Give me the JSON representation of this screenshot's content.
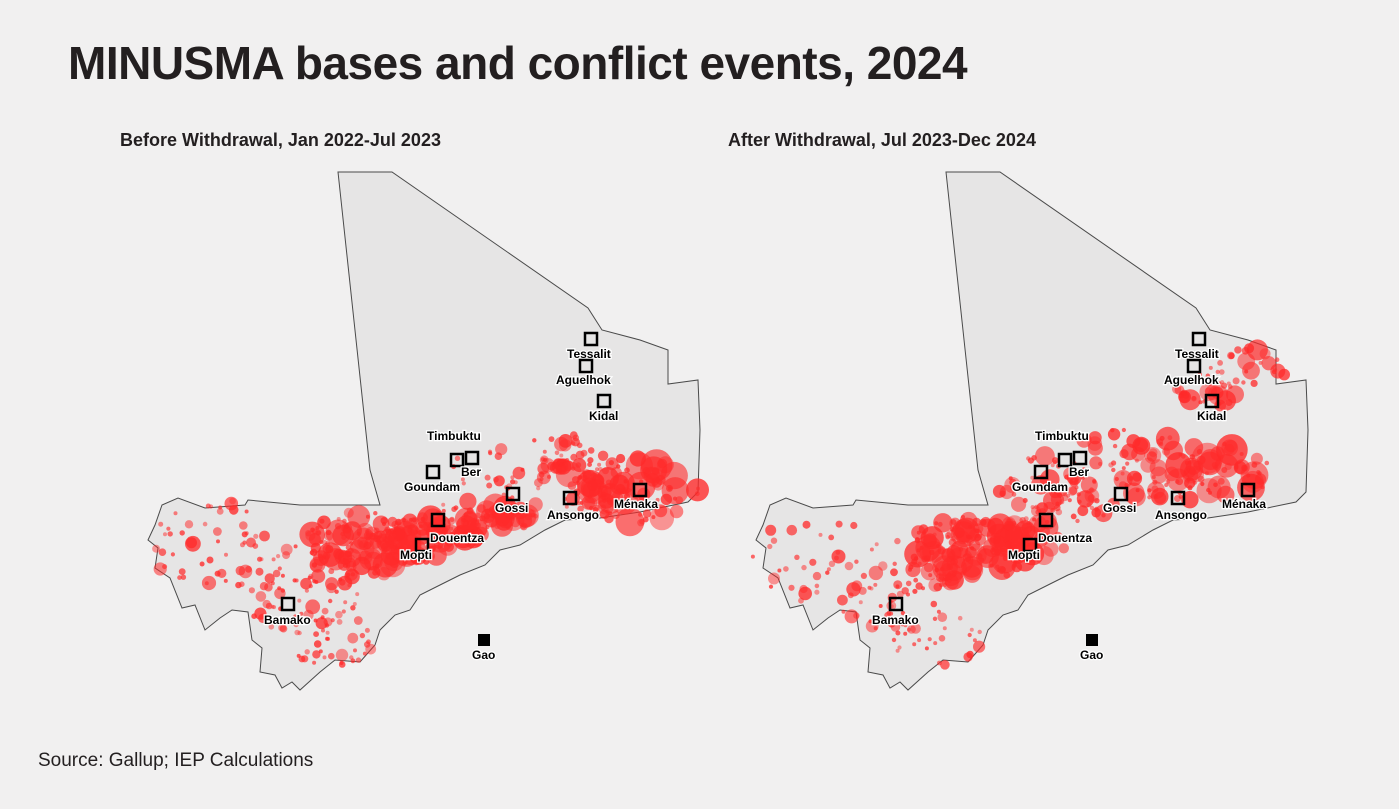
{
  "title": "MINUSMA bases and conflict events, 2024",
  "source": "Source: Gallup; IEP Calculations",
  "colors": {
    "event": "#ff2a2a",
    "base": "#000000",
    "country_fill": "#e6e5e5",
    "background": "#f1f0f0"
  },
  "panels": [
    {
      "title": "Before Withdrawal, Jan 2022-Jul 2023",
      "bases": [
        {
          "name": "Tessalit",
          "label": "Tessalit"
        },
        {
          "name": "Aguelhok",
          "label": "Aguelhok"
        },
        {
          "name": "Kidal",
          "label": "Kidal"
        },
        {
          "name": "Timbuktu",
          "label": "Timbuktu"
        },
        {
          "name": "Ber",
          "label": "Ber"
        },
        {
          "name": "Goundam",
          "label": "Goundam"
        },
        {
          "name": "Gossi",
          "label": "Gossi"
        },
        {
          "name": "Ansongo",
          "label": "Ansongo"
        },
        {
          "name": "Ménaka",
          "label": "Ménaka"
        },
        {
          "name": "Douentza",
          "label": "Douentza"
        },
        {
          "name": "Mopti",
          "label": "Mopti"
        },
        {
          "name": "Bamako",
          "label": "Bamako"
        },
        {
          "name": "Gao",
          "label": "Gao"
        }
      ]
    },
    {
      "title": "After Withdrawal, Jul 2023-Dec 2024",
      "bases": [
        {
          "name": "Tessalit",
          "label": "Tessalit"
        },
        {
          "name": "Aguelhok",
          "label": "Aguelhok"
        },
        {
          "name": "Kidal",
          "label": "Kidal"
        },
        {
          "name": "Timbuktu",
          "label": "Timbuktu"
        },
        {
          "name": "Ber",
          "label": "Ber"
        },
        {
          "name": "Goundam",
          "label": "Goundam"
        },
        {
          "name": "Gossi",
          "label": "Gossi"
        },
        {
          "name": "Ansongo",
          "label": "Ansongo"
        },
        {
          "name": "Ménaka",
          "label": "Ménaka"
        },
        {
          "name": "Douentza",
          "label": "Douentza"
        },
        {
          "name": "Mopti",
          "label": "Mopti"
        },
        {
          "name": "Bamako",
          "label": "Bamako"
        },
        {
          "name": "Gao",
          "label": "Gao"
        }
      ]
    }
  ]
}
